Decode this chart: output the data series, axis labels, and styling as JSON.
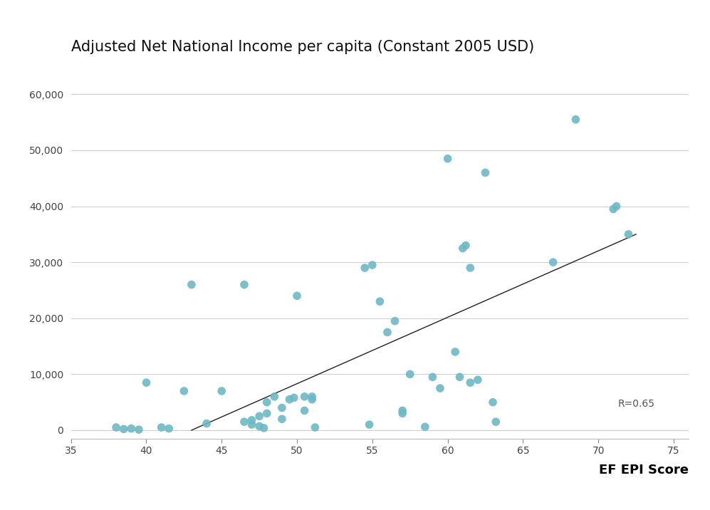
{
  "title": "Adjusted Net National Income per capita (Constant 2005 USD)",
  "xlabel": "EF EPI Score",
  "scatter_color": "#6db8c5",
  "line_color": "#222222",
  "background_color": "#ffffff",
  "r_value": "R=0.65",
  "xlim": [
    35,
    76
  ],
  "ylim": [
    -1500,
    65000
  ],
  "xticks": [
    35,
    40,
    45,
    50,
    55,
    60,
    65,
    70,
    75
  ],
  "yticks": [
    0,
    10000,
    20000,
    30000,
    40000,
    50000,
    60000
  ],
  "points": [
    [
      38.0,
      500
    ],
    [
      38.5,
      200
    ],
    [
      39.0,
      300
    ],
    [
      39.5,
      100
    ],
    [
      40.0,
      8500
    ],
    [
      41.0,
      500
    ],
    [
      41.5,
      300
    ],
    [
      42.5,
      7000
    ],
    [
      43.0,
      26000
    ],
    [
      44.0,
      1200
    ],
    [
      45.0,
      7000
    ],
    [
      46.5,
      26000
    ],
    [
      46.5,
      1500
    ],
    [
      47.0,
      1800
    ],
    [
      47.0,
      1000
    ],
    [
      47.5,
      2500
    ],
    [
      47.5,
      700
    ],
    [
      47.8,
      400
    ],
    [
      48.0,
      5000
    ],
    [
      48.0,
      3000
    ],
    [
      48.5,
      6000
    ],
    [
      49.0,
      4000
    ],
    [
      49.0,
      2000
    ],
    [
      49.5,
      5500
    ],
    [
      49.8,
      5800
    ],
    [
      50.0,
      24000
    ],
    [
      50.5,
      6000
    ],
    [
      50.5,
      3500
    ],
    [
      51.0,
      6000
    ],
    [
      51.0,
      5500
    ],
    [
      51.2,
      500
    ],
    [
      54.5,
      29000
    ],
    [
      54.8,
      1000
    ],
    [
      55.0,
      29500
    ],
    [
      55.5,
      23000
    ],
    [
      56.0,
      17500
    ],
    [
      56.5,
      19500
    ],
    [
      57.0,
      3500
    ],
    [
      57.0,
      3000
    ],
    [
      57.5,
      10000
    ],
    [
      58.5,
      600
    ],
    [
      59.0,
      9500
    ],
    [
      59.5,
      7500
    ],
    [
      60.0,
      48500
    ],
    [
      60.5,
      14000
    ],
    [
      60.8,
      9500
    ],
    [
      61.0,
      32500
    ],
    [
      61.2,
      33000
    ],
    [
      61.5,
      29000
    ],
    [
      61.5,
      8500
    ],
    [
      62.0,
      9000
    ],
    [
      62.5,
      46000
    ],
    [
      63.0,
      5000
    ],
    [
      63.2,
      1500
    ],
    [
      67.0,
      30000
    ],
    [
      68.5,
      55500
    ],
    [
      71.0,
      39500
    ],
    [
      71.2,
      40000
    ],
    [
      72.0,
      35000
    ]
  ],
  "trend_line_x": [
    43.0,
    72.5
  ],
  "trend_line_y": [
    0,
    35000
  ],
  "marker_size": 70,
  "title_fontsize": 15,
  "tick_fontsize": 10,
  "xlabel_fontsize": 13,
  "r_fontsize": 10,
  "grid_color": "#cccccc",
  "spine_color": "#bbbbbb",
  "tick_color": "#888888"
}
